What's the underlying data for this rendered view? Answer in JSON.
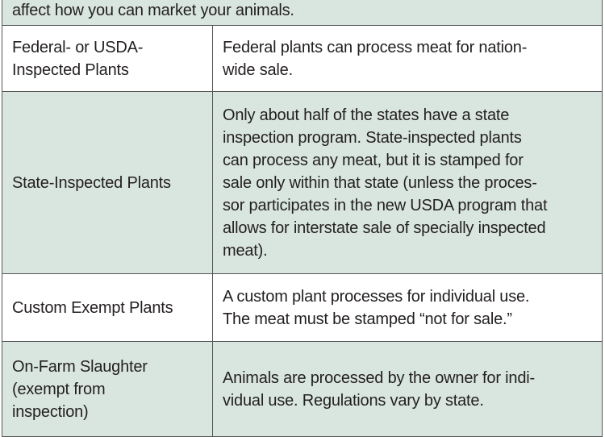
{
  "intro": "affect how you can market your animals.",
  "rows": [
    {
      "type": "Federal- or USDA-\nInspected Plants",
      "description": "Federal plants can process meat for nation-\nwide sale."
    },
    {
      "type": "State-Inspected Plants",
      "description": "Only about half of the states have a state\ninspection program. State-inspected plants\ncan process any meat, but it is stamped for\nsale only within that state (unless the proces-\nsor participates in the new USDA program that\nallows for interstate sale of specially inspected\nmeat)."
    },
    {
      "type": "Custom Exempt Plants",
      "description": "A custom plant processes for individual use.\nThe meat must be stamped “not for sale.”"
    },
    {
      "type": "On-Farm Slaughter\n(exempt from\ninspection)",
      "description": "Animals are processed by the owner for indi-\nvidual use. Regulations vary by state."
    }
  ],
  "colors": {
    "shade": "#d9e6e0",
    "border": "#555555"
  }
}
